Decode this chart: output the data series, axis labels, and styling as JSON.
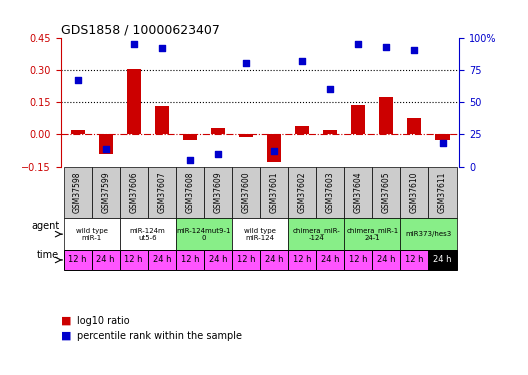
{
  "title": "GDS1858 / 10000623407",
  "samples": [
    "GSM37598",
    "GSM37599",
    "GSM37606",
    "GSM37607",
    "GSM37608",
    "GSM37609",
    "GSM37600",
    "GSM37601",
    "GSM37602",
    "GSM37603",
    "GSM37604",
    "GSM37605",
    "GSM37610",
    "GSM37611"
  ],
  "log10_ratio": [
    0.02,
    -0.09,
    0.305,
    0.13,
    -0.025,
    0.03,
    -0.01,
    -0.13,
    0.04,
    0.02,
    0.135,
    0.175,
    0.075,
    -0.025
  ],
  "percentile_rank": [
    67,
    14,
    95,
    92,
    5,
    10,
    80,
    12,
    82,
    60,
    95,
    93,
    90,
    18
  ],
  "ylim_left": [
    -0.15,
    0.45
  ],
  "ylim_right": [
    0,
    100
  ],
  "yticks_left": [
    -0.15,
    0.0,
    0.15,
    0.3,
    0.45
  ],
  "yticks_right": [
    0,
    25,
    50,
    75,
    100
  ],
  "agent_groups": [
    {
      "label": "wild type\nmiR-1",
      "cols": [
        0,
        1
      ],
      "color": "#ffffff"
    },
    {
      "label": "miR-124m\nut5-6",
      "cols": [
        2,
        3
      ],
      "color": "#ffffff"
    },
    {
      "label": "miR-124mut9-1\n0",
      "cols": [
        4,
        5
      ],
      "color": "#88ee88"
    },
    {
      "label": "wild type\nmiR-124",
      "cols": [
        6,
        7
      ],
      "color": "#ffffff"
    },
    {
      "label": "chimera_miR-\n-124",
      "cols": [
        8,
        9
      ],
      "color": "#88ee88"
    },
    {
      "label": "chimera_miR-1\n24-1",
      "cols": [
        10,
        11
      ],
      "color": "#88ee88"
    },
    {
      "label": "miR373/hes3",
      "cols": [
        12,
        13
      ],
      "color": "#88ee88"
    }
  ],
  "time_labels": [
    "12 h",
    "24 h",
    "12 h",
    "24 h",
    "12 h",
    "24 h",
    "12 h",
    "24 h",
    "12 h",
    "24 h",
    "12 h",
    "24 h",
    "12 h",
    "24 h"
  ],
  "time_last_black": true,
  "bar_color": "#cc0000",
  "dot_color": "#0000cc",
  "zero_line_color": "#cc0000",
  "dotted_line_color": "black",
  "background_color": "#ffffff",
  "tick_color_left": "#cc0000",
  "tick_color_right": "#0000cc",
  "time_fill_color": "#ff55ff",
  "sample_box_color": "#cccccc"
}
